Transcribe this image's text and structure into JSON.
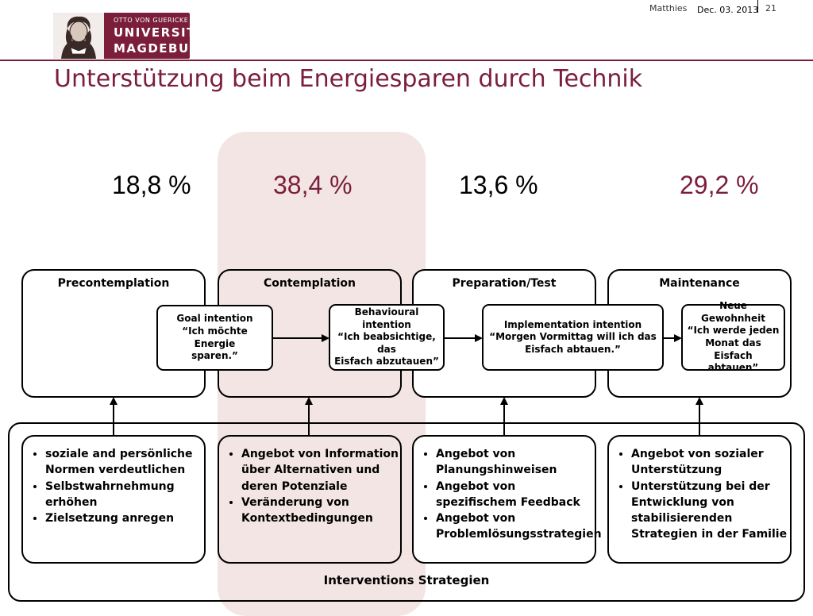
{
  "header": {
    "logo": {
      "line1": "OTTO VON GUERICKE",
      "line2": "UNIVERSITÄT",
      "line3": "MAGDEBURG"
    },
    "author": "Matthies",
    "date": "Dec. 03. 2013",
    "page": "21"
  },
  "title": "Unterstützung beim Energiesparen durch Technik",
  "colors": {
    "accent": "#7b1e3c",
    "highlight": "#f2e5e3"
  },
  "stages": [
    {
      "name": "Precontemplation",
      "percent": "18,8 %"
    },
    {
      "name": "Contemplation",
      "percent": "38,4 %"
    },
    {
      "name": "Preparation/Test",
      "percent": "13,6 %"
    },
    {
      "name": "Maintenance",
      "percent": "29,2 %"
    }
  ],
  "intentions": [
    {
      "line1": "Goal intention",
      "line2": "“Ich möchte  Energie",
      "line3": "sparen.”"
    },
    {
      "line1": "Behavioural intention",
      "line2": "“Ich beabsichtige, das",
      "line3": "Eisfach abzutauen”"
    },
    {
      "line1": "Implementation  intention",
      "line2": "“Morgen  Vormittag will ich das",
      "line3": "Eisfach abtauen.”"
    },
    {
      "line1": "Neue Gewohnheit",
      "line2": "“Ich werde jeden",
      "line3": "Monat das Eisfach",
      "line4": "abtauen”"
    }
  ],
  "interventions": [
    {
      "items": [
        "soziale and persönliche Normen verdeutlichen",
        "Selbstwahrnehmung erhöhen",
        "Zielsetzung anregen"
      ]
    },
    {
      "items": [
        "Angebot von Information über Alternativen und deren Potenziale",
        "Veränderung von Kontextbedingungen"
      ]
    },
    {
      "items": [
        "Angebot von Planungshinweisen",
        "Angebot von spezifischem Feedback",
        "Angebot von Problemlösungsstrategien"
      ]
    },
    {
      "items": [
        "Angebot von sozialer Unterstützung",
        "Unterstützung bei der Entwicklung von stabilisierenden Strategien in der Familie"
      ]
    }
  ],
  "footer_label": "Interventions Strategien"
}
